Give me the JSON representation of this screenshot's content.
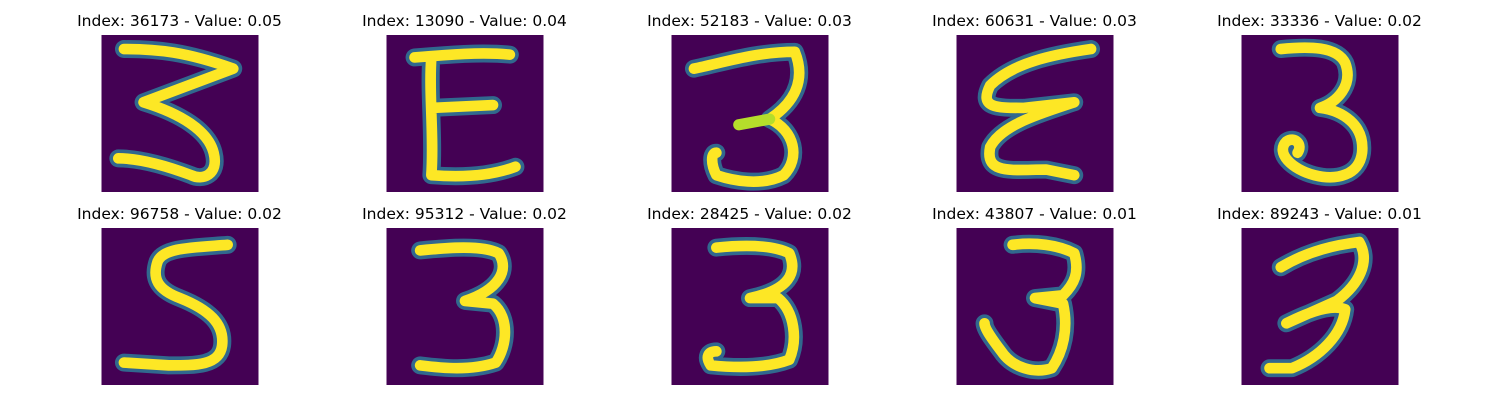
{
  "colors": {
    "background": "#440154",
    "stroke_mid": "#21918c",
    "stroke_edge": "#31688e",
    "stroke_core": "#fde725",
    "stroke_inner": "#b5de2b"
  },
  "panels": [
    {
      "index": "36173",
      "value": "0.05",
      "title": "Index: 36173 - Value: 0.05",
      "glyph": "3"
    },
    {
      "index": "13090",
      "value": "0.04",
      "title": "Index: 13090 - Value: 0.04",
      "glyph": "E"
    },
    {
      "index": "52183",
      "value": "0.03",
      "title": "Index: 52183 - Value: 0.03",
      "glyph": "3"
    },
    {
      "index": "60631",
      "value": "0.03",
      "title": "Index: 60631 - Value: 0.03",
      "glyph": "3"
    },
    {
      "index": "33336",
      "value": "0.02",
      "title": "Index: 33336 - Value: 0.02",
      "glyph": "3"
    },
    {
      "index": "96758",
      "value": "0.02",
      "title": "Index: 96758 - Value: 0.02",
      "glyph": "5"
    },
    {
      "index": "95312",
      "value": "0.02",
      "title": "Index: 95312 - Value: 0.02",
      "glyph": "3"
    },
    {
      "index": "28425",
      "value": "0.02",
      "title": "Index: 28425 - Value: 0.02",
      "glyph": "3"
    },
    {
      "index": "43807",
      "value": "0.01",
      "title": "Index: 43807 - Value: 0.01",
      "glyph": "3"
    },
    {
      "index": "89243",
      "value": "0.01",
      "title": "Index: 89243 - Value: 0.01",
      "glyph": "3"
    }
  ]
}
